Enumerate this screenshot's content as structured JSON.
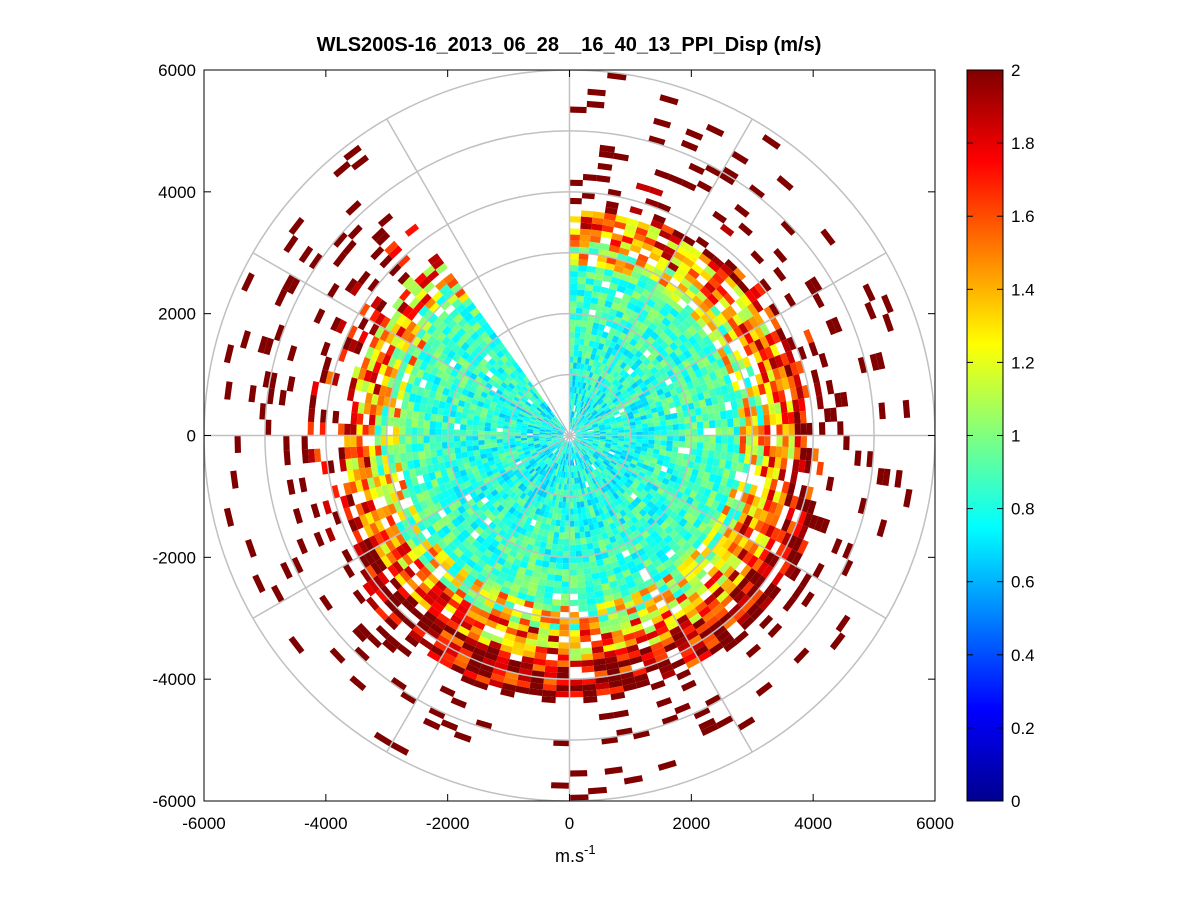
{
  "chart_data": {
    "type": "heatmap",
    "subtype": "polar-ppi-scan",
    "title": "WLS200S-16_2013_06_28__16_40_13_PPI_Disp (m/s)",
    "xlabel_base": "m.s",
    "xlabel_exponent": "-1",
    "ylabel": "",
    "xlim": [
      -6000,
      6000
    ],
    "ylim": [
      -6000,
      6000
    ],
    "xticks": [
      "-6000",
      "-4000",
      "-2000",
      "0",
      "2000",
      "4000",
      "6000"
    ],
    "yticks": [
      "6000",
      "4000",
      "2000",
      "0",
      "-2000",
      "-4000",
      "-6000"
    ],
    "xtick_values": [
      -6000,
      -4000,
      -2000,
      0,
      2000,
      4000,
      6000
    ],
    "ytick_values": [
      6000,
      4000,
      2000,
      0,
      -2000,
      -4000,
      -6000
    ],
    "polar_grid": {
      "ring_radii_m": [
        1000,
        2000,
        3000,
        4000,
        5000,
        6000
      ],
      "spoke_angles_deg": [
        0,
        30,
        60,
        90,
        120,
        150,
        180,
        210,
        240,
        270,
        300,
        330
      ]
    },
    "colorbar": {
      "colormap": "jet",
      "range": [
        0,
        2
      ],
      "ticks": [
        "0",
        "0.2",
        "0.4",
        "0.6",
        "0.8",
        "1",
        "1.2",
        "1.4",
        "1.6",
        "1.8",
        "2"
      ],
      "tick_values": [
        0,
        0.2,
        0.4,
        0.6,
        0.8,
        1.0,
        1.2,
        1.4,
        1.6,
        1.8,
        2.0
      ]
    },
    "scan": {
      "gap_sector_azimuth_deg": [
        324,
        359
      ],
      "inner_region": {
        "r_max_m": 2800,
        "value_mean": 0.75,
        "value_spread": 0.18
      },
      "middle_rings": [
        {
          "r_m": [
            2800,
            3200
          ],
          "value_mean": 1.2
        },
        {
          "r_m": [
            3200,
            3700
          ],
          "value_mean": 1.5
        },
        {
          "r_m": [
            3700,
            4300
          ],
          "value_mean": 1.95
        }
      ],
      "outer_sparse_ring": {
        "r_m": [
          4300,
          6000
        ],
        "value": 2.0,
        "density": 0.18
      },
      "max_range_m": 6000
    }
  },
  "colors": {
    "grid": "#c0c0c0",
    "axis": "#000000",
    "background": "#ffffff"
  }
}
